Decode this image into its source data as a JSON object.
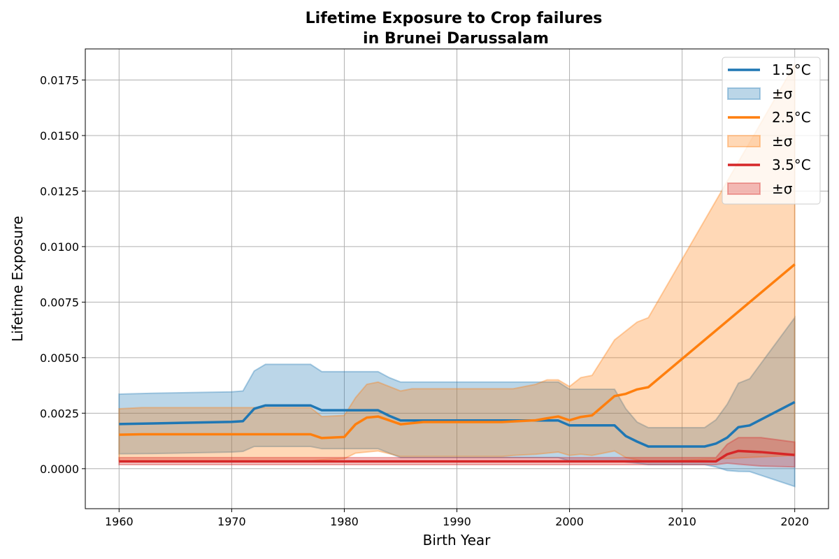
{
  "chart_data": {
    "type": "line",
    "title_line1": "Lifetime Exposure to Crop failures",
    "title_line2": "in Brunei Darussalam",
    "xlabel": "Birth Year",
    "ylabel": "Lifetime Exposure",
    "xlim": [
      1957,
      2023
    ],
    "ylim": [
      -0.0018,
      0.0189
    ],
    "x_ticks": [
      1960,
      1970,
      1980,
      1990,
      2000,
      2010,
      2020
    ],
    "y_ticks": [
      0.0,
      0.0025,
      0.005,
      0.0075,
      0.01,
      0.0125,
      0.015,
      0.0175
    ],
    "y_tick_labels": [
      "0.0000",
      "0.0025",
      "0.0050",
      "0.0075",
      "0.0100",
      "0.0125",
      "0.0150",
      "0.0175"
    ],
    "grid": true,
    "legend_position": "top-right",
    "series": [
      {
        "name": "1.5°C",
        "band_name": "±σ",
        "color": "#1f77b4",
        "x": [
          1960,
          1963,
          1970,
          1971,
          1972,
          1973,
          1977,
          1978,
          1983,
          1984,
          1985,
          1999,
          2000,
          2004,
          2005,
          2006,
          2007,
          2012,
          2013,
          2014,
          2015,
          2016,
          2020
        ],
        "mean": [
          0.00201,
          0.00204,
          0.00211,
          0.00214,
          0.0027,
          0.00285,
          0.00285,
          0.00263,
          0.00263,
          0.00238,
          0.00217,
          0.00217,
          0.00195,
          0.00195,
          0.00147,
          0.00122,
          0.001,
          0.001,
          0.00113,
          0.0014,
          0.00187,
          0.00195,
          0.003
        ],
        "upper": [
          0.00336,
          0.0034,
          0.00346,
          0.0035,
          0.0044,
          0.0047,
          0.0047,
          0.00437,
          0.00437,
          0.0041,
          0.0039,
          0.0039,
          0.00358,
          0.00358,
          0.0027,
          0.0021,
          0.00185,
          0.00185,
          0.0022,
          0.0029,
          0.00385,
          0.00405,
          0.0068
        ],
        "lower": [
          0.00067,
          0.00068,
          0.00075,
          0.00078,
          0.001,
          0.001,
          0.001,
          0.0009,
          0.0009,
          0.0007,
          0.0005,
          0.0005,
          0.00035,
          0.00035,
          0.0003,
          0.00025,
          0.00018,
          0.00018,
          8e-05,
          -8e-05,
          -0.00012,
          -0.00013,
          -0.0008
        ]
      },
      {
        "name": "2.5°C",
        "band_name": "±σ",
        "color": "#ff7f0e",
        "x": [
          1960,
          1962,
          1977,
          1978,
          1980,
          1981,
          1982,
          1983,
          1985,
          1986,
          1987,
          1994,
          1995,
          1997,
          1998,
          1999,
          2000,
          2001,
          2002,
          2004,
          2005,
          2006,
          2007,
          2020
        ],
        "mean": [
          0.00153,
          0.00155,
          0.00155,
          0.00138,
          0.00143,
          0.002,
          0.0023,
          0.00235,
          0.002,
          0.00205,
          0.0021,
          0.0021,
          0.00213,
          0.00218,
          0.00227,
          0.00235,
          0.00218,
          0.00233,
          0.0024,
          0.00327,
          0.00337,
          0.00357,
          0.00367,
          0.0092
        ],
        "upper": [
          0.0027,
          0.00275,
          0.00275,
          0.00235,
          0.0024,
          0.0032,
          0.0038,
          0.0039,
          0.0035,
          0.0036,
          0.0036,
          0.0036,
          0.0036,
          0.0038,
          0.004,
          0.004,
          0.0037,
          0.0041,
          0.0042,
          0.0058,
          0.0062,
          0.0066,
          0.0068,
          0.0182
        ],
        "lower": [
          0.00035,
          0.00035,
          0.00035,
          0.0004,
          0.00045,
          0.0007,
          0.00075,
          0.0008,
          0.00055,
          0.00055,
          0.00055,
          0.00055,
          0.0006,
          0.00065,
          0.0007,
          0.00075,
          0.0006,
          0.00065,
          0.0006,
          0.0008,
          0.0005,
          0.0004,
          0.0003,
          0.0006
        ]
      },
      {
        "name": "3.5°C",
        "band_name": "±σ",
        "color": "#d62728",
        "x": [
          1960,
          2013,
          2014,
          2015,
          2017,
          2020
        ],
        "mean": [
          0.00033,
          0.00033,
          0.00065,
          0.0008,
          0.00075,
          0.00062
        ],
        "upper": [
          0.0005,
          0.0005,
          0.0011,
          0.0014,
          0.0014,
          0.0012
        ],
        "lower": [
          0.00018,
          0.00018,
          0.00025,
          0.0002,
          0.00012,
          8e-05
        ]
      }
    ]
  }
}
